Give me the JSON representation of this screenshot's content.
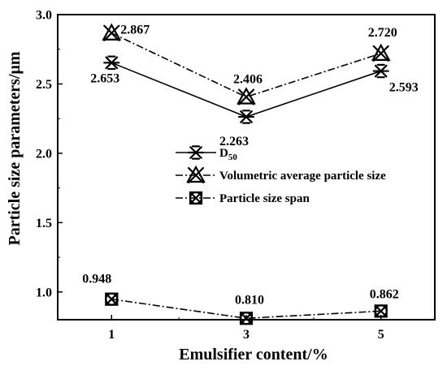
{
  "chart_data": {
    "type": "line",
    "xlabel": "Emulsifier content/%",
    "ylabel": "Particle size parameters/μm",
    "x": [
      1,
      3,
      5
    ],
    "xlim": [
      0.2,
      5.8
    ],
    "ylim": [
      0.8,
      3.0
    ],
    "xticks": [
      "1",
      "3",
      "5"
    ],
    "yticks": [
      "1.0",
      "1.5",
      "2.0",
      "2.5",
      "3.0"
    ],
    "legend_position": "center",
    "grid": false,
    "series": [
      {
        "key": "d50",
        "name": "D50",
        "name_main": "D",
        "name_sub": "50",
        "values": [
          2.653,
          2.263,
          2.593
        ],
        "labels": [
          "2.653",
          "2.263",
          "2.593"
        ],
        "line_style": "solid",
        "marker": "asterisk",
        "color": "#000000"
      },
      {
        "key": "vol",
        "name": "Volumetric average particle size",
        "values": [
          2.867,
          2.406,
          2.72
        ],
        "labels": [
          "2.867",
          "2.406",
          "2.720"
        ],
        "line_style": "dash-dot",
        "marker": "hourglass-triangle",
        "color": "#000000"
      },
      {
        "key": "span",
        "name": "Particle size span",
        "values": [
          0.948,
          0.81,
          0.862
        ],
        "labels": [
          "0.948",
          "0.810",
          "0.862"
        ],
        "line_style": "dash-dot",
        "marker": "circle-x",
        "color": "#000000"
      }
    ]
  }
}
